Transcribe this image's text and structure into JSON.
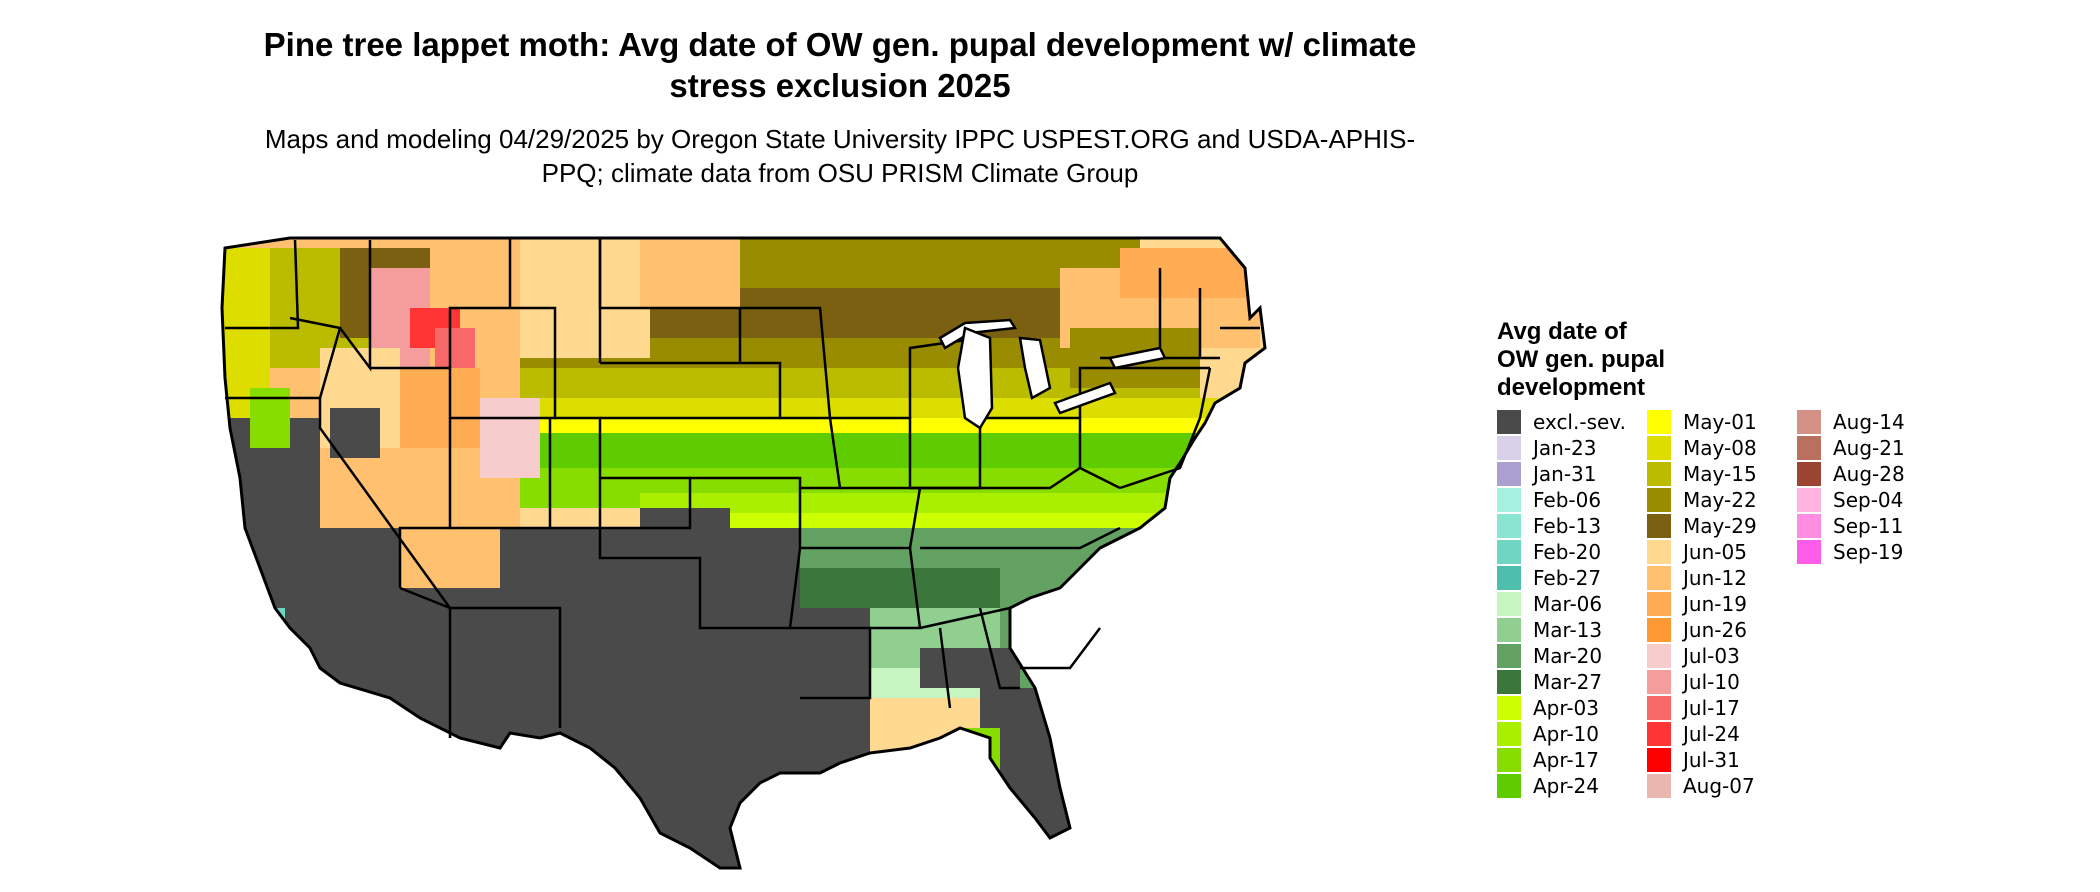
{
  "title": "Pine tree lappet moth: Avg date of OW gen. pupal development w/ climate stress exclusion 2025",
  "subtitle": "Maps and modeling 04/29/2025 by Oregon State University IPPC USPEST.ORG and USDA-APHIS-PPQ; climate data from OSU PRISM Climate Group",
  "legend": {
    "title_lines": [
      "Avg date of",
      "OW gen. pupal",
      "development"
    ],
    "items": [
      {
        "label": "excl.-sev.",
        "color": "#4a4a4a"
      },
      {
        "label": "Jan-23",
        "color": "#d9d0ea"
      },
      {
        "label": "Jan-31",
        "color": "#ab9fcf"
      },
      {
        "label": "Feb-06",
        "color": "#a6f1e2"
      },
      {
        "label": "Feb-13",
        "color": "#8ae4d2"
      },
      {
        "label": "Feb-20",
        "color": "#6fd6c4"
      },
      {
        "label": "Feb-27",
        "color": "#4fbfad"
      },
      {
        "label": "Mar-06",
        "color": "#c6f5c2"
      },
      {
        "label": "Mar-13",
        "color": "#91cf91"
      },
      {
        "label": "Mar-20",
        "color": "#64a264"
      },
      {
        "label": "Mar-27",
        "color": "#3b763b"
      },
      {
        "label": "Apr-03",
        "color": "#ccff00"
      },
      {
        "label": "Apr-10",
        "color": "#aaee00"
      },
      {
        "label": "Apr-17",
        "color": "#88dd00"
      },
      {
        "label": "Apr-24",
        "color": "#5fcc00"
      },
      {
        "label": "May-01",
        "color": "#ffff00"
      },
      {
        "label": "May-08",
        "color": "#dddd00"
      },
      {
        "label": "May-15",
        "color": "#bbbb00"
      },
      {
        "label": "May-22",
        "color": "#9a8c00"
      },
      {
        "label": "May-29",
        "color": "#7a6010"
      },
      {
        "label": "Jun-05",
        "color": "#ffd990"
      },
      {
        "label": "Jun-12",
        "color": "#ffc070"
      },
      {
        "label": "Jun-19",
        "color": "#ffac55"
      },
      {
        "label": "Jun-26",
        "color": "#ff9933"
      },
      {
        "label": "Jul-03",
        "color": "#f7cccc"
      },
      {
        "label": "Jul-10",
        "color": "#f59c9c"
      },
      {
        "label": "Jul-17",
        "color": "#f76868"
      },
      {
        "label": "Jul-24",
        "color": "#ff3535"
      },
      {
        "label": "Jul-31",
        "color": "#ff0000"
      },
      {
        "label": "Aug-07",
        "color": "#e9b7b0"
      },
      {
        "label": "Aug-14",
        "color": "#d49287"
      },
      {
        "label": "Aug-21",
        "color": "#b9705f"
      },
      {
        "label": "Aug-28",
        "color": "#9c4432"
      },
      {
        "label": "Sep-04",
        "color": "#ffb3de"
      },
      {
        "label": "Sep-11",
        "color": "#ff8ee2"
      },
      {
        "label": "Sep-19",
        "color": "#ff5ce9"
      }
    ]
  }
}
